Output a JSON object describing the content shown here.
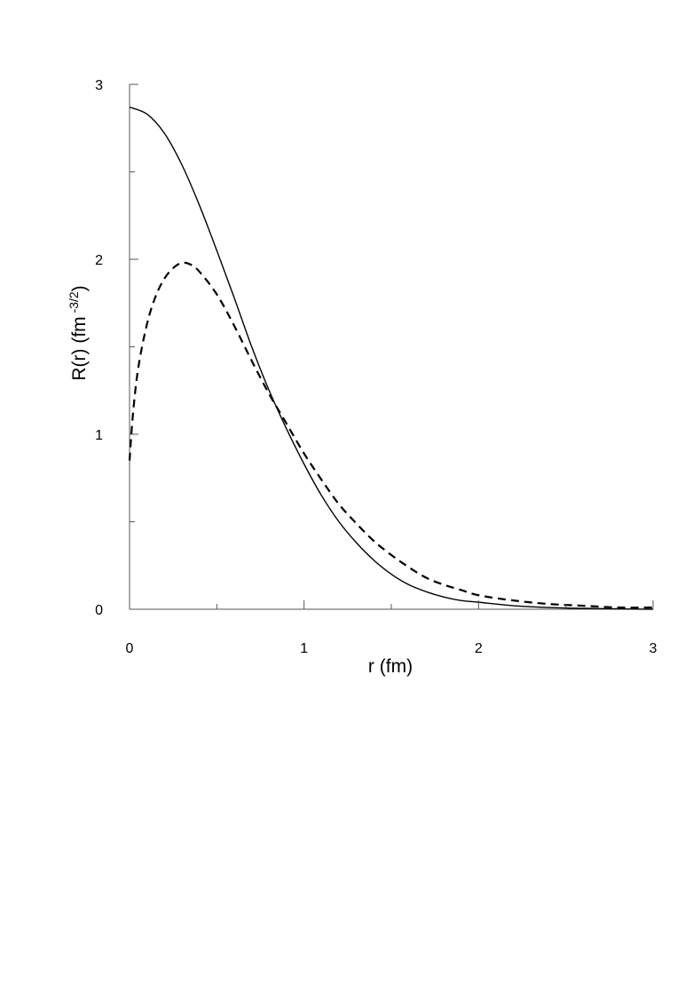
{
  "chart_data": {
    "type": "line",
    "xlabel": "r (fm)",
    "ylabel": {
      "prefix": "R(r) (fm",
      "superscript": " -3/2",
      "suffix": ")"
    },
    "xlim": [
      0,
      3
    ],
    "ylim": [
      0,
      3
    ],
    "x_major_ticks": [
      0,
      1,
      2,
      3
    ],
    "x_minor_ticks": [
      0.5,
      1.5,
      2.5
    ],
    "y_major_ticks": [
      0,
      1,
      2,
      3
    ],
    "y_minor_ticks": [
      0.5,
      1.5,
      2.5
    ],
    "x_tick_labels": [
      "0",
      "1",
      "2",
      "3"
    ],
    "y_tick_labels": [
      "0",
      "1",
      "2",
      "3"
    ],
    "grid": false,
    "legend": "none",
    "series": [
      {
        "style": "solid",
        "color": "#000000",
        "x": [
          0,
          0.1,
          0.2,
          0.3,
          0.4,
          0.5,
          0.6,
          0.7,
          0.8,
          0.9,
          1.0,
          1.1,
          1.2,
          1.3,
          1.4,
          1.5,
          1.6,
          1.7,
          1.8,
          1.9,
          2.0,
          2.2,
          2.4,
          2.6,
          2.8,
          3.0
        ],
        "y": [
          2.87,
          2.83,
          2.72,
          2.54,
          2.31,
          2.05,
          1.78,
          1.5,
          1.25,
          1.03,
          0.83,
          0.65,
          0.5,
          0.38,
          0.28,
          0.2,
          0.14,
          0.1,
          0.07,
          0.05,
          0.04,
          0.02,
          0.01,
          0.005,
          0.002,
          0.0
        ]
      },
      {
        "style": "dashed",
        "color": "#000000",
        "x": [
          0,
          0.02,
          0.05,
          0.1,
          0.15,
          0.2,
          0.25,
          0.3,
          0.35,
          0.4,
          0.5,
          0.6,
          0.7,
          0.8,
          0.9,
          1.0,
          1.1,
          1.2,
          1.3,
          1.4,
          1.5,
          1.6,
          1.7,
          1.8,
          1.9,
          2.0,
          2.2,
          2.4,
          2.6,
          2.8,
          3.0
        ],
        "y": [
          0.85,
          1.12,
          1.38,
          1.63,
          1.79,
          1.89,
          1.95,
          1.98,
          1.97,
          1.93,
          1.8,
          1.62,
          1.42,
          1.23,
          1.06,
          0.89,
          0.74,
          0.6,
          0.49,
          0.39,
          0.31,
          0.24,
          0.18,
          0.14,
          0.11,
          0.08,
          0.05,
          0.03,
          0.02,
          0.01,
          0.01
        ]
      }
    ]
  }
}
